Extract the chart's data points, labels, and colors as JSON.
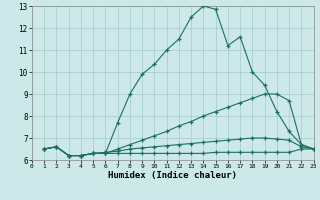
{
  "xlabel": "Humidex (Indice chaleur)",
  "bg_color": "#cce8e8",
  "grid_color": "#aacece",
  "line_color": "#1a7060",
  "xlim": [
    0,
    23
  ],
  "ylim": [
    6,
    13
  ],
  "xticks": [
    0,
    1,
    2,
    3,
    4,
    5,
    6,
    7,
    8,
    9,
    10,
    11,
    12,
    13,
    14,
    15,
    16,
    17,
    18,
    19,
    20,
    21,
    22,
    23
  ],
  "yticks": [
    6,
    7,
    8,
    9,
    10,
    11,
    12,
    13
  ],
  "line1_x": [
    1,
    2,
    3,
    4,
    5,
    6,
    7,
    8,
    9,
    10,
    11,
    12,
    13,
    14,
    15,
    16,
    17,
    18,
    19,
    20,
    21,
    22,
    23
  ],
  "line1_y": [
    6.5,
    6.6,
    6.2,
    6.2,
    6.3,
    6.3,
    7.7,
    9.0,
    9.9,
    10.35,
    11.0,
    11.5,
    12.5,
    13.0,
    12.85,
    11.2,
    11.6,
    10.0,
    9.4,
    8.2,
    7.3,
    6.7,
    6.5
  ],
  "line2_x": [
    1,
    2,
    3,
    4,
    5,
    6,
    7,
    8,
    9,
    10,
    11,
    12,
    13,
    14,
    15,
    16,
    17,
    18,
    19,
    20,
    21,
    22,
    23
  ],
  "line2_y": [
    6.5,
    6.6,
    6.2,
    6.2,
    6.3,
    6.3,
    6.5,
    6.7,
    6.9,
    7.1,
    7.3,
    7.55,
    7.75,
    8.0,
    8.2,
    8.4,
    8.6,
    8.8,
    9.0,
    9.0,
    8.7,
    6.7,
    6.5
  ],
  "line3_x": [
    1,
    2,
    3,
    4,
    5,
    6,
    7,
    8,
    9,
    10,
    11,
    12,
    13,
    14,
    15,
    16,
    17,
    18,
    19,
    20,
    21,
    22,
    23
  ],
  "line3_y": [
    6.5,
    6.6,
    6.2,
    6.2,
    6.3,
    6.35,
    6.4,
    6.5,
    6.55,
    6.6,
    6.65,
    6.7,
    6.75,
    6.8,
    6.85,
    6.9,
    6.95,
    7.0,
    7.0,
    6.95,
    6.9,
    6.6,
    6.5
  ],
  "line4_x": [
    1,
    2,
    3,
    4,
    5,
    6,
    7,
    8,
    9,
    10,
    11,
    12,
    13,
    14,
    15,
    16,
    17,
    18,
    19,
    20,
    21,
    22,
    23
  ],
  "line4_y": [
    6.5,
    6.6,
    6.2,
    6.2,
    6.3,
    6.3,
    6.3,
    6.3,
    6.3,
    6.3,
    6.3,
    6.3,
    6.3,
    6.3,
    6.35,
    6.35,
    6.35,
    6.35,
    6.35,
    6.35,
    6.35,
    6.5,
    6.5
  ]
}
